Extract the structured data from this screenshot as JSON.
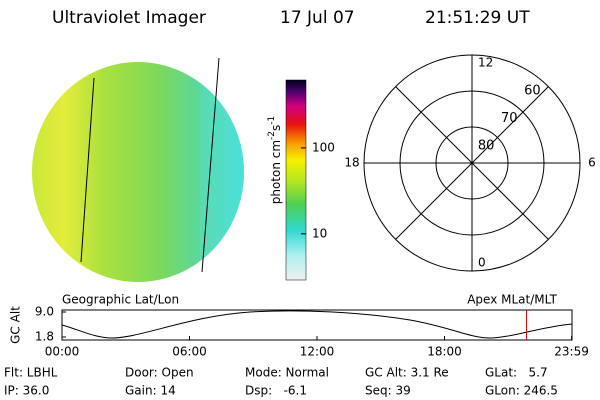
{
  "header": {
    "title": "Ultraviolet Imager",
    "date": "17 Jul 07",
    "time": "21:51:29 UT"
  },
  "colorbar": {
    "label": [
      "photon cm",
      "-2",
      "s",
      "-1"
    ],
    "lim": [
      2.9,
      617
    ],
    "ticks": [
      10,
      100
    ],
    "log": true
  },
  "polar": {
    "lim": [
      90,
      60
    ],
    "rings": [
      80,
      70,
      60
    ],
    "hours": [
      12,
      6,
      0,
      18
    ]
  },
  "orbit": {
    "left_title": "Geographic Lat/Lon",
    "right_title": "Apex MLat/MLT",
    "ylabel": "GC Alt",
    "ylim": [
      0.94,
      9.58
    ],
    "yticks": [
      {
        "value": 9,
        "label": "9.0"
      },
      {
        "value": 1.8,
        "label": "1.8"
      }
    ],
    "xlim": [
      0,
      24
    ],
    "xticks": [
      {
        "value": 0,
        "label": "00:00"
      },
      {
        "value": 6,
        "label": "06:00"
      },
      {
        "value": 12,
        "label": "12:00"
      },
      {
        "value": 18,
        "label": "18:00"
      },
      {
        "value": 23.98,
        "label": "23:59"
      }
    ],
    "marker": 21.86
  },
  "footer": [
    [
      "Flt: LBHL",
      "Door: Open",
      "Mode: Normal",
      "GC Alt: 3.1 Re",
      "GLat:   5.7"
    ],
    [
      "IP: 36.0",
      "Gain: 14",
      "Dsp:   -6.1",
      "Seq: 39",
      "GLon: 246.5"
    ]
  ]
}
